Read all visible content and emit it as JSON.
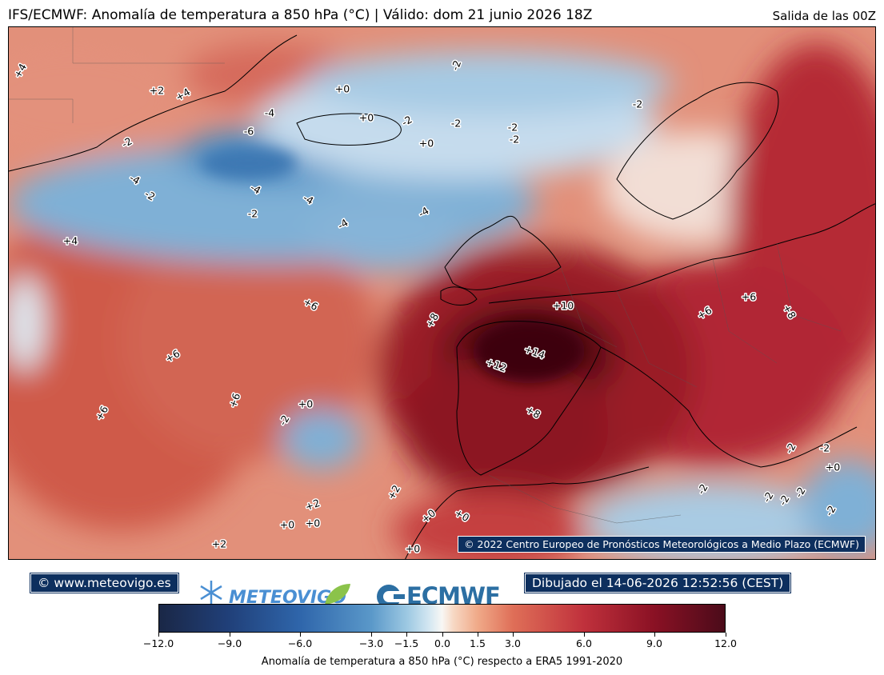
{
  "header": {
    "title": "IFS/ECMWF: Anomalía de temperatura a 850 hPa (°C) | Válido: dom 21 junio 2026 18Z",
    "run": "Salida de las 00Z"
  },
  "map": {
    "copyright": "© 2022 Centro Europeo de Pronósticos Meteorológicos a Medio Plazo (ECMWF)",
    "contour_labels": [
      {
        "text": "+4"
      },
      {
        "text": "+2"
      },
      {
        "text": "+4"
      },
      {
        "text": "+0"
      },
      {
        "text": "-2"
      },
      {
        "text": "-2"
      },
      {
        "text": "-4"
      },
      {
        "text": "+0"
      },
      {
        "text": "-2"
      },
      {
        "text": "-2"
      },
      {
        "text": "-2"
      },
      {
        "text": "-2"
      },
      {
        "text": "-6"
      },
      {
        "text": "-2"
      },
      {
        "text": "+0"
      },
      {
        "text": "-4"
      },
      {
        "text": "-2"
      },
      {
        "text": "-4"
      },
      {
        "text": "-4"
      },
      {
        "text": "-2"
      },
      {
        "text": "-4"
      },
      {
        "text": "-4"
      },
      {
        "text": "+4"
      },
      {
        "text": "+6"
      },
      {
        "text": "+10"
      },
      {
        "text": "+6"
      },
      {
        "text": "+6"
      },
      {
        "text": "+8"
      },
      {
        "text": "+8"
      },
      {
        "text": "+6"
      },
      {
        "text": "+14"
      },
      {
        "text": "+12"
      },
      {
        "text": "+6"
      },
      {
        "text": "+0"
      },
      {
        "text": "+6"
      },
      {
        "text": "-2"
      },
      {
        "text": "+8"
      },
      {
        "text": "-2"
      },
      {
        "text": "-2"
      },
      {
        "text": "+0"
      },
      {
        "text": "+2"
      },
      {
        "text": "+2"
      },
      {
        "text": "+0"
      },
      {
        "text": "+0"
      },
      {
        "text": "+0"
      },
      {
        "text": "+0"
      },
      {
        "text": "+2"
      },
      {
        "text": "+0"
      },
      {
        "text": "-2"
      },
      {
        "text": "-2"
      },
      {
        "text": "-2"
      },
      {
        "text": "-2"
      },
      {
        "text": "-2"
      }
    ]
  },
  "footer": {
    "site": "© www.meteovigo.es",
    "logo_meteovigo": "METEOVIGO",
    "logo_ecmwf": "ECMWF",
    "drawn": "Dibujado el 14-06-2026 12:52:56 (CEST)"
  },
  "colorbar": {
    "ticks": [
      "−12.0",
      "−9.0",
      "−6.0",
      "−3.0",
      "−1.5",
      "0.0",
      "1.5",
      "3.0",
      "6.0",
      "9.0",
      "12.0"
    ],
    "tick_values": [
      -12,
      -9,
      -6,
      -3,
      -1.5,
      0,
      1.5,
      3,
      6,
      9,
      12
    ],
    "label": "Anomalía de temperatura a 850 hPa (°C) respecto a ERA5 1991-2020",
    "colors": [
      "#1a2746",
      "#2f66ab",
      "#9cc8e2",
      "#f8f7f4",
      "#f0aa89",
      "#c0313c",
      "#4b0b1a"
    ]
  }
}
